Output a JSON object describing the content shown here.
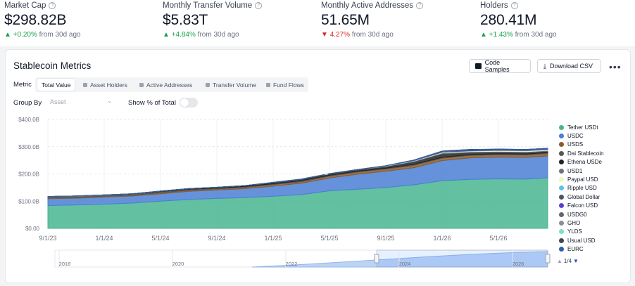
{
  "kpis": [
    {
      "label": "Market Cap",
      "value": "$298.82B",
      "delta": "+0.20%",
      "suffix": "from 30d ago",
      "direction": "up"
    },
    {
      "label": "Monthly Transfer Volume",
      "value": "$5.83T",
      "delta": "+4.84%",
      "suffix": "from 30d ago",
      "direction": "up"
    },
    {
      "label": "Monthly Active Addresses",
      "value": "51.65M",
      "delta": "4.27%",
      "suffix": "from 30d ago",
      "direction": "down"
    },
    {
      "label": "Holders",
      "value": "280.41M",
      "delta": "+1.43%",
      "suffix": "from 30d ago",
      "direction": "up"
    }
  ],
  "card": {
    "title": "Stablecoin Metrics",
    "code_samples": "Code Samples",
    "download_csv": "Download CSV",
    "metric_label": "Metric",
    "tabs": [
      "Total Value",
      "Asset Holders",
      "Active Addresses",
      "Transfer Volume",
      "Fund Flows"
    ],
    "active_tab": "Total Value",
    "group_by_label": "Group By",
    "group_by_value": "Asset",
    "show_pct_label": "Show % of Total",
    "show_pct_on": false,
    "pager": "1/4"
  },
  "chart_data": {
    "type": "area",
    "stacked": true,
    "y_ticks": [
      "$0.00",
      "$100.0B",
      "$200.0B",
      "$300.0B",
      "$400.0B"
    ],
    "ylim": [
      0,
      400
    ],
    "x_ticks": [
      "9/1/23",
      "1/1/24",
      "5/1/24",
      "9/1/24",
      "1/1/25",
      "5/1/25",
      "9/1/25",
      "1/1/26",
      "5/1/26"
    ],
    "navigator_ticks": [
      "2018",
      "2020",
      "2022",
      "2024",
      "2026"
    ],
    "watermark": "rwa",
    "x": [
      0,
      2,
      4,
      6,
      8,
      10,
      12,
      14,
      16,
      18,
      20,
      22,
      24,
      26,
      28,
      30,
      32,
      34,
      35.5
    ],
    "series": [
      {
        "name": "Tether USDt",
        "color": "#48b590",
        "values": [
          84,
          86,
          89,
          93,
          100,
          106,
          110,
          113,
          118,
          124,
          138,
          144,
          150,
          160,
          175,
          180,
          182,
          181,
          186
        ]
      },
      {
        "name": "USDC",
        "color": "#4a7fd4",
        "values": [
          25,
          25,
          26,
          26,
          27,
          30,
          31,
          33,
          37,
          42,
          47,
          55,
          60,
          63,
          74,
          79,
          80,
          80,
          80
        ]
      },
      {
        "name": "USDS",
        "color": "#8b5a2b",
        "values": [
          3,
          3,
          3,
          3,
          4,
          4,
          4,
          5,
          6,
          6,
          7,
          8,
          8,
          9,
          9,
          9,
          9,
          9,
          9
        ]
      },
      {
        "name": "Dai Stablecoin",
        "color": "#555555",
        "values": [
          5,
          5,
          5,
          4,
          4,
          4,
          3,
          3,
          3,
          3,
          3,
          3,
          3,
          3,
          3,
          3,
          3,
          3,
          3
        ]
      },
      {
        "name": "Ethena USDe",
        "color": "#222222",
        "values": [
          0,
          0,
          0,
          1,
          2,
          2,
          3,
          3,
          5,
          6,
          6,
          5,
          6,
          10,
          13,
          8,
          6,
          6,
          5
        ]
      },
      {
        "name": "USD1",
        "color": "#6b7280",
        "values": [
          0,
          0,
          0,
          0,
          0,
          0,
          0,
          0,
          0,
          0,
          0,
          1,
          2,
          2,
          3,
          3,
          3,
          3,
          3
        ]
      },
      {
        "name": "Paypal USD",
        "color": "#f0f6c0",
        "values": [
          0,
          0,
          0,
          0,
          0,
          0,
          0,
          0,
          0,
          0,
          0,
          0,
          1,
          1,
          2,
          2,
          3,
          3,
          3
        ]
      },
      {
        "name": "Ripple USD",
        "color": "#5bc3e8",
        "values": [
          0,
          0,
          0,
          0,
          0,
          0,
          0,
          0,
          0,
          0,
          0,
          0,
          0,
          1,
          1,
          1,
          1,
          1,
          1
        ]
      },
      {
        "name": "Global Dollar",
        "color": "#4b5563",
        "values": [
          0,
          0,
          0,
          0,
          0,
          0,
          0,
          0,
          0,
          0,
          0,
          0,
          0,
          0,
          1,
          1,
          1,
          1,
          1
        ]
      },
      {
        "name": "Falcon USD",
        "color": "#5b3fd0",
        "values": [
          0,
          0,
          0,
          0,
          0,
          0,
          0,
          0,
          0,
          0,
          0,
          0,
          0,
          1,
          1,
          2,
          2,
          2,
          2
        ]
      },
      {
        "name": "USDG0",
        "color": "#5f6670",
        "values": [
          0,
          0,
          0,
          0,
          0,
          0,
          0,
          0,
          0,
          0,
          0,
          0,
          0,
          1,
          1,
          1,
          1,
          1,
          1
        ]
      },
      {
        "name": "GHO",
        "color": "#8a8f98",
        "values": [
          0,
          0,
          0,
          0,
          0,
          0,
          0,
          0,
          0,
          0,
          0,
          0,
          0,
          0,
          0,
          0,
          0,
          0,
          0
        ]
      },
      {
        "name": "YLDS",
        "color": "#7fe0c8",
        "values": [
          0,
          0,
          0,
          0,
          0,
          0,
          0,
          0,
          0,
          0,
          0,
          0,
          0,
          0,
          0,
          0,
          0,
          0,
          0
        ]
      },
      {
        "name": "Usual USD",
        "color": "#3f4650",
        "values": [
          0,
          0,
          0,
          0,
          0,
          0,
          0,
          0,
          0,
          0,
          0,
          0,
          0,
          0,
          1,
          1,
          0,
          0,
          0
        ]
      },
      {
        "name": "EURC",
        "color": "#2f5fa8",
        "values": [
          0,
          0,
          0,
          0,
          0,
          0,
          0,
          0,
          0,
          0,
          0,
          0,
          0,
          0,
          0,
          0,
          0,
          0,
          0
        ]
      }
    ],
    "legend_position": "right",
    "grid": true
  }
}
